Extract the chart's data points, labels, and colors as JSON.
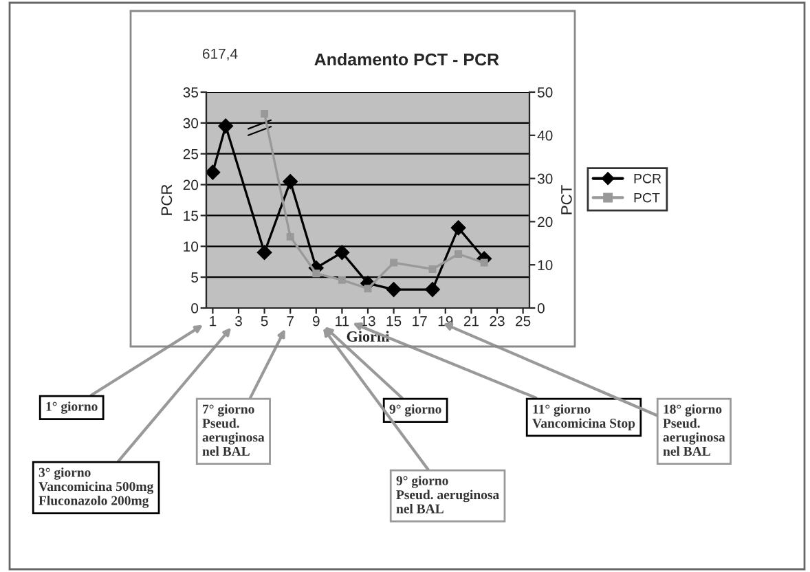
{
  "chart_data": {
    "type": "line",
    "title": "Andamento PCT - PCR",
    "xlabel": "Giorni",
    "ylabel": "PCR",
    "y2label": "PCT",
    "xlim": [
      0.5,
      25.5
    ],
    "xticks": [
      1,
      3,
      5,
      7,
      9,
      11,
      13,
      15,
      17,
      19,
      21,
      23,
      25
    ],
    "ylim": [
      0,
      35
    ],
    "yticks": [
      0,
      5,
      10,
      15,
      20,
      25,
      30,
      35
    ],
    "y2lim": [
      0,
      50
    ],
    "y2ticks": [
      0,
      10,
      20,
      30,
      40,
      50
    ],
    "grid": "y",
    "legend": "right",
    "line_style": "solid",
    "series": [
      {
        "name": "PCR",
        "color": "#000000",
        "marker": "diamond",
        "x": [
          1,
          2,
          5,
          7,
          9,
          11,
          13,
          15,
          18,
          20,
          22
        ],
        "values": [
          22,
          29.5,
          9,
          20.5,
          6.5,
          9,
          4,
          3,
          3,
          13,
          8
        ]
      },
      {
        "name": "PCT",
        "color": "#999999",
        "marker": "square",
        "axis": "y2",
        "x": [
          5,
          7,
          9,
          11,
          13,
          15,
          18,
          20,
          22
        ],
        "values": [
          45,
          16.5,
          8,
          6.5,
          4.5,
          10.5,
          9,
          12.5,
          10.5
        ]
      }
    ],
    "annotations": [
      "617,4",
      "1° giorno",
      "3° giorno\nVancomicina 500mg\nFluconazolo 200mg",
      "7° giorno\nPseud.\naeruginosa\nnel BAL",
      "9° giorno",
      "9° giorno\nPseud. aeruginosa\nnel BAL",
      "11° giorno\nVancomicina Stop",
      "18° giorno\nPseud.\naeruginosa\nnel BAL"
    ]
  }
}
